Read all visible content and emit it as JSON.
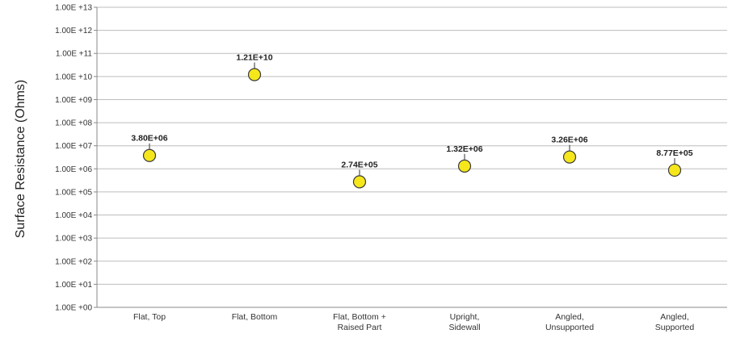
{
  "chart_data": {
    "type": "scatter",
    "ylabel": "Surface Resistance (Ohms)",
    "xlabel": "",
    "title": "",
    "y_scale": "log",
    "ylim": [
      1,
      10000000000000
    ],
    "y_tick_labels": [
      "1.00E +00",
      "1.00E +01",
      "1.00E +02",
      "1.00E +03",
      "1.00E +04",
      "1.00E +05",
      "1.00E +06",
      "1.00E +07",
      "1.00E +08",
      "1.00E +09",
      "1.00E +10",
      "1.00E +11",
      "1.00E +12",
      "1.00E +13"
    ],
    "categories": [
      [
        "Flat, Top"
      ],
      [
        "Flat, Bottom"
      ],
      [
        "Flat, Bottom +",
        "Raised Part"
      ],
      [
        "Upright,",
        "Sidewall"
      ],
      [
        "Angled,",
        "Unsupported"
      ],
      [
        "Angled,",
        "Supported"
      ]
    ],
    "values": [
      3800000,
      12100000000,
      274000,
      1320000,
      3260000,
      877000
    ],
    "data_labels": [
      "3.80E+06",
      "1.21E+10",
      "2.74E+05",
      "1.32E+06",
      "3.26E+06",
      "8.77E+05"
    ],
    "grid": true,
    "legend": "none",
    "marker_color": "#f5e71c",
    "marker_edge_color": "#3a3a3a"
  }
}
